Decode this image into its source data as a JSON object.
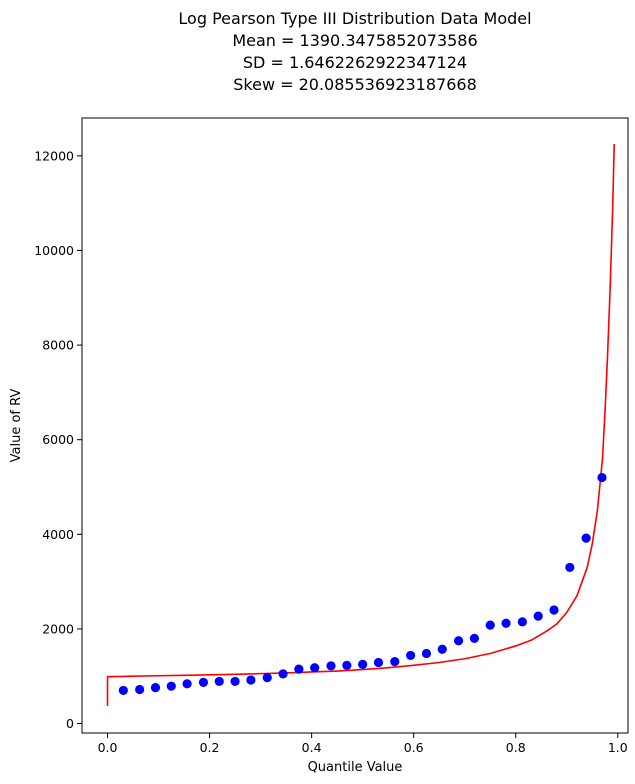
{
  "chart_data": {
    "type": "scatter",
    "title_lines": [
      "Log Pearson Type III Distribution Data Model",
      "Mean = 1390.3475852073586",
      "SD = 1.6462262922347124",
      "Skew = 20.085536923187668"
    ],
    "xlabel": "Quantile Value",
    "ylabel": "Value of RV",
    "xlim": [
      -0.05,
      1.02
    ],
    "ylim": [
      -200,
      12800
    ],
    "x_ticks": [
      0.0,
      0.2,
      0.4,
      0.6,
      0.8,
      1.0
    ],
    "x_tick_labels": [
      "0.0",
      "0.2",
      "0.4",
      "0.6",
      "0.8",
      "1.0"
    ],
    "y_ticks": [
      0,
      2000,
      4000,
      6000,
      8000,
      10000,
      12000
    ],
    "y_tick_labels": [
      "0",
      "2000",
      "4000",
      "6000",
      "8000",
      "10000",
      "12000"
    ],
    "grid": false,
    "series": [
      {
        "kind": "line",
        "color": "#ff0000",
        "x": [
          0.0,
          0.0,
          0.05,
          0.1,
          0.15,
          0.2,
          0.25,
          0.3,
          0.35,
          0.4,
          0.45,
          0.5,
          0.55,
          0.6,
          0.65,
          0.7,
          0.75,
          0.8,
          0.83,
          0.86,
          0.88,
          0.9,
          0.92,
          0.94,
          0.95,
          0.96,
          0.97,
          0.975,
          0.98,
          0.985,
          0.99,
          0.993
        ],
        "y": [
          370,
          990,
          1000,
          1010,
          1020,
          1030,
          1040,
          1055,
          1070,
          1090,
          1110,
          1140,
          1180,
          1230,
          1290,
          1370,
          1480,
          1640,
          1760,
          1950,
          2100,
          2350,
          2700,
          3300,
          3800,
          4500,
          5600,
          6600,
          7800,
          9200,
          10900,
          12250
        ]
      },
      {
        "kind": "points",
        "color": "#0000ff",
        "x": [
          0.031,
          0.063,
          0.094,
          0.125,
          0.156,
          0.188,
          0.219,
          0.25,
          0.281,
          0.313,
          0.344,
          0.375,
          0.406,
          0.438,
          0.469,
          0.5,
          0.531,
          0.563,
          0.594,
          0.625,
          0.656,
          0.688,
          0.719,
          0.75,
          0.781,
          0.813,
          0.844,
          0.875,
          0.906,
          0.938,
          0.969
        ],
        "y": [
          700,
          720,
          760,
          790,
          840,
          870,
          890,
          890,
          920,
          970,
          1050,
          1150,
          1180,
          1220,
          1230,
          1250,
          1290,
          1310,
          1440,
          1480,
          1570,
          1750,
          1800,
          2080,
          2120,
          2150,
          2270,
          2400,
          3300,
          3920,
          5200
        ]
      }
    ]
  }
}
